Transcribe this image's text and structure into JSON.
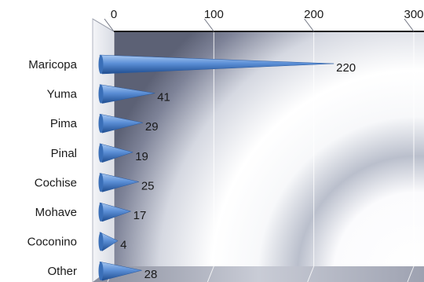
{
  "chart_data": {
    "type": "bar",
    "orientation": "horizontal",
    "style": "3d-cone",
    "categories": [
      "Maricopa",
      "Yuma",
      "Pima",
      "Pinal",
      "Cochise",
      "Mohave",
      "Coconino",
      "Other"
    ],
    "values": [
      220,
      41,
      29,
      19,
      25,
      17,
      4,
      28
    ],
    "data_labels": [
      "220",
      "41",
      "29",
      "19",
      "25",
      "17",
      "4",
      "28"
    ],
    "x_ticks": [
      "0",
      "100",
      "200",
      "300"
    ],
    "xlim": [
      0,
      300
    ],
    "axis_position": "top",
    "grid": true,
    "legend": "none",
    "title": "",
    "xlabel": "",
    "ylabel": "",
    "colors": {
      "bar": "#4a7fc8",
      "bar_light": "#9dc1ef",
      "bar_dark": "#1f4d8f",
      "background_light": "#ffffff",
      "background_dark": "#5c6175"
    }
  }
}
